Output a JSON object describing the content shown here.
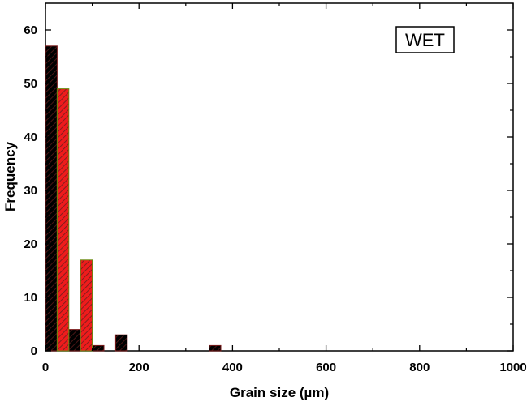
{
  "chart_data": {
    "type": "bar",
    "title": "",
    "xlabel": "Grain size (µm)",
    "ylabel": "Frequency",
    "xlim": [
      0,
      1000
    ],
    "ylim": [
      0,
      65
    ],
    "xticks": [
      0,
      200,
      400,
      600,
      800,
      1000
    ],
    "yticks": [
      0,
      10,
      20,
      30,
      40,
      50,
      60
    ],
    "grid": false,
    "annotation": "WET",
    "bin_width": 25,
    "series": [
      {
        "color": "#000000",
        "hatch": "#5a1a1a",
        "bars": [
          {
            "x": 0,
            "value": 57
          },
          {
            "x": 50,
            "value": 4
          },
          {
            "x": 100,
            "value": 1
          },
          {
            "x": 150,
            "value": 3
          },
          {
            "x": 350,
            "value": 1
          }
        ]
      },
      {
        "color": "#ee1c1c",
        "hatch": "#5a1a1a",
        "bars": [
          {
            "x": 25,
            "value": 49
          },
          {
            "x": 75,
            "value": 17
          }
        ]
      }
    ]
  }
}
